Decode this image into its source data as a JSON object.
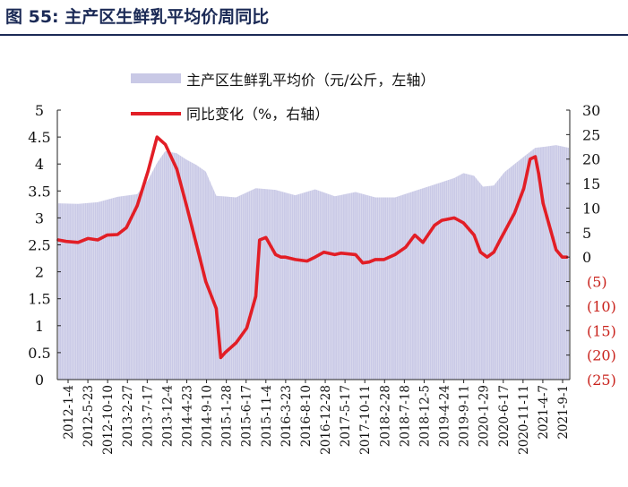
{
  "figure": {
    "title": "图 55: 主产区生鲜乳平均价周同比"
  },
  "colors": {
    "price_area": "#c9c9e6",
    "yoy_line": "#e21e26",
    "title": "#1b2a56"
  },
  "chart_data": {
    "type": "area+line",
    "legend": {
      "placement": "top",
      "items": [
        {
          "label": "主产区生鲜乳平均价（元/公斤，左轴）"
        },
        {
          "label": "同比变化（%，右轴）"
        }
      ]
    },
    "y_left": {
      "range": [
        0,
        5
      ],
      "ticks": [
        "0",
        "0.5",
        "1",
        "1.5",
        "2",
        "2.5",
        "3",
        "3.5",
        "4",
        "4.5",
        "5"
      ]
    },
    "y_right": {
      "range": [
        -25,
        30
      ],
      "ticks": [
        "(25)",
        "(20)",
        "(15)",
        "(10)",
        "(5)",
        "0",
        "5",
        "10",
        "15",
        "20",
        "25",
        "30"
      ]
    },
    "x_ticks": [
      "2012-1-4",
      "2012-5-23",
      "2012-10-10",
      "2013-2-27",
      "2013-7-17",
      "2013-12-4",
      "2014-4-23",
      "2014-9-10",
      "2015-1-28",
      "2015-6-17",
      "2015-11-4",
      "2016-3-23",
      "2016-8-10",
      "2016-12-28",
      "2017-5-17",
      "2017-10-11",
      "2018-2-28",
      "2018-7-18",
      "2018-12-5",
      "2019-4-24",
      "2019-9-11",
      "2020-1-29",
      "2020-6-17",
      "2020-11-11",
      "2021-4-7",
      "2021-9-1"
    ],
    "series": [
      {
        "axis": "left",
        "type": "area",
        "x": [
          "2012-1-4",
          "2012-5-23",
          "2012-10-10",
          "2013-2-27",
          "2013-7-17",
          "2013-10-1",
          "2013-12-4",
          "2014-2-1",
          "2014-4-23",
          "2014-7-1",
          "2014-9-10",
          "2014-11-15",
          "2015-1-28",
          "2015-6-17",
          "2015-11-4",
          "2016-3-23",
          "2016-8-10",
          "2016-12-28",
          "2017-5-17",
          "2017-10-11",
          "2018-2-28",
          "2018-7-18",
          "2018-12-5",
          "2019-4-24",
          "2019-9-11",
          "2019-11-15",
          "2020-1-29",
          "2020-4-1",
          "2020-6-17",
          "2020-9-1",
          "2020-11-11",
          "2021-2-1",
          "2021-4-7",
          "2021-6-15",
          "2021-9-1",
          "2021-12-1"
        ],
        "values": [
          3.27,
          3.26,
          3.29,
          3.39,
          3.44,
          3.7,
          4.02,
          4.24,
          4.2,
          4.08,
          3.98,
          3.86,
          3.41,
          3.38,
          3.55,
          3.52,
          3.42,
          3.53,
          3.4,
          3.48,
          3.38,
          3.38,
          3.5,
          3.62,
          3.74,
          3.83,
          3.78,
          3.58,
          3.6,
          3.85,
          4.0,
          4.17,
          4.3,
          4.32,
          4.35,
          4.3
        ]
      },
      {
        "axis": "right",
        "type": "line",
        "x": [
          "2012-1-4",
          "2012-3-1",
          "2012-5-23",
          "2012-8-1",
          "2012-10-10",
          "2012-12-15",
          "2013-2-27",
          "2013-5-1",
          "2013-7-17",
          "2013-10-1",
          "2013-12-4",
          "2014-2-1",
          "2014-4-23",
          "2014-7-1",
          "2014-9-10",
          "2014-11-15",
          "2015-1-28",
          "2015-3-1",
          "2015-4-1",
          "2015-6-17",
          "2015-9-1",
          "2015-11-4",
          "2015-12-1",
          "2016-1-15",
          "2016-3-23",
          "2016-5-1",
          "2016-6-1",
          "2016-8-10",
          "2016-11-1",
          "2016-12-28",
          "2017-3-1",
          "2017-5-17",
          "2017-7-1",
          "2017-10-11",
          "2017-12-1",
          "2018-1-15",
          "2018-2-28",
          "2018-5-1",
          "2018-7-18",
          "2018-10-1",
          "2018-12-5",
          "2019-2-1",
          "2019-4-24",
          "2019-6-15",
          "2019-9-11",
          "2019-11-15",
          "2020-1-29",
          "2020-3-15",
          "2020-5-1",
          "2020-6-17",
          "2020-8-1",
          "2020-11-11",
          "2021-1-15",
          "2021-3-1",
          "2021-4-7",
          "2021-5-1",
          "2021-6-1",
          "2021-7-15",
          "2021-9-1",
          "2021-10-15",
          "2021-11-15"
        ],
        "values": [
          3.5,
          3.2,
          3.0,
          3.8,
          3.5,
          4.5,
          4.6,
          6.0,
          10.5,
          17.5,
          24.5,
          23.0,
          18.0,
          10.5,
          2.5,
          -5.0,
          -10.5,
          -20.5,
          -19.5,
          -17.5,
          -14.5,
          -8.0,
          3.5,
          4.0,
          0.5,
          0.0,
          0.0,
          -0.5,
          -0.8,
          0.0,
          1.0,
          0.5,
          0.8,
          0.5,
          -1.2,
          -1.0,
          -0.5,
          -0.5,
          0.5,
          2.0,
          4.5,
          3.0,
          6.5,
          7.5,
          8.0,
          7.0,
          4.5,
          1.0,
          0.0,
          1.0,
          3.5,
          9.0,
          14.0,
          20.0,
          20.5,
          17.0,
          11.0,
          6.5,
          1.5,
          0,
          0
        ]
      }
    ]
  }
}
